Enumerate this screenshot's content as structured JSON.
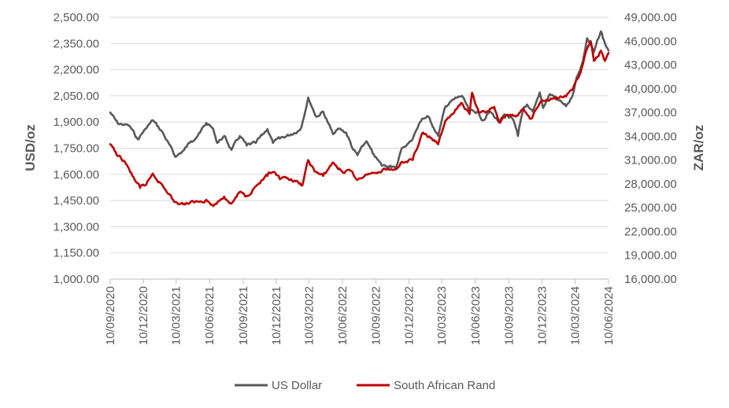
{
  "chart_data": {
    "type": "line",
    "title": "",
    "ylabel_left": "USD/oz",
    "ylabel_right": "ZAR/oz",
    "left_axis": {
      "min": 1000,
      "max": 2500,
      "ticks": [
        "1,000.00",
        "1,150.00",
        "1,300.00",
        "1,450.00",
        "1,600.00",
        "1,750.00",
        "1,900.00",
        "2,050.00",
        "2,200.00",
        "2,350.00",
        "2,500.00"
      ]
    },
    "right_axis": {
      "min": 16000,
      "max": 49000,
      "ticks": [
        "16,000.00",
        "19,000.00",
        "22,000.00",
        "25,000.00",
        "28,000.00",
        "31,000.00",
        "34,000.00",
        "37,000.00",
        "40,000.00",
        "43,000.00",
        "46,000.00",
        "49,000.00"
      ]
    },
    "x_tick_labels": [
      "10/09/2020",
      "10/12/2020",
      "10/03/2021",
      "10/06/2021",
      "10/09/2021",
      "10/12/2021",
      "10/03/2022",
      "10/06/2022",
      "10/09/2022",
      "10/12/2022",
      "10/03/2023",
      "10/06/2023",
      "10/09/2023",
      "10/12/2023",
      "10/03/2024",
      "10/06/2024"
    ],
    "grid": "horizontal",
    "legend_position": "bottom",
    "series": [
      {
        "name": "US Dollar",
        "axis": "left",
        "color": "#595959",
        "x": [
          "2020-09-10",
          "2020-10-01",
          "2020-11-01",
          "2020-11-25",
          "2020-12-15",
          "2021-01-05",
          "2021-02-01",
          "2021-03-08",
          "2021-04-01",
          "2021-04-20",
          "2021-05-15",
          "2021-06-01",
          "2021-06-20",
          "2021-07-01",
          "2021-07-20",
          "2021-08-09",
          "2021-09-01",
          "2021-09-20",
          "2021-10-15",
          "2021-11-16",
          "2021-12-01",
          "2021-12-20",
          "2022-01-20",
          "2022-02-15",
          "2022-03-08",
          "2022-03-30",
          "2022-04-18",
          "2022-05-15",
          "2022-06-01",
          "2022-06-20",
          "2022-07-10",
          "2022-07-21",
          "2022-08-15",
          "2022-09-01",
          "2022-09-26",
          "2022-10-20",
          "2022-11-03",
          "2022-11-20",
          "2022-12-15",
          "2023-01-15",
          "2023-02-01",
          "2023-02-28",
          "2023-03-20",
          "2023-04-13",
          "2023-05-04",
          "2023-05-25",
          "2023-06-15",
          "2023-07-01",
          "2023-07-20",
          "2023-08-15",
          "2023-09-01",
          "2023-09-20",
          "2023-10-05",
          "2023-10-20",
          "2023-10-30",
          "2023-11-15",
          "2023-12-04",
          "2023-12-13",
          "2024-01-01",
          "2024-01-20",
          "2024-02-14",
          "2024-03-01",
          "2024-03-15",
          "2024-04-01",
          "2024-04-12",
          "2024-04-25",
          "2024-05-01",
          "2024-05-20",
          "2024-05-31",
          "2024-06-10"
        ],
        "y": [
          1955,
          1890,
          1880,
          1800,
          1860,
          1910,
          1840,
          1700,
          1740,
          1790,
          1840,
          1895,
          1860,
          1780,
          1820,
          1740,
          1820,
          1765,
          1780,
          1860,
          1780,
          1805,
          1830,
          1860,
          2040,
          1930,
          1960,
          1830,
          1860,
          1840,
          1740,
          1710,
          1790,
          1720,
          1650,
          1650,
          1630,
          1750,
          1790,
          1920,
          1930,
          1820,
          1990,
          2030,
          2050,
          1960,
          1960,
          1910,
          1960,
          1900,
          1940,
          1920,
          1820,
          1980,
          2000,
          1960,
          2070,
          1980,
          2060,
          2030,
          1990,
          2040,
          2160,
          2250,
          2380,
          2330,
          2300,
          2420,
          2350,
          2310
        ]
      },
      {
        "name": "South African Rand",
        "axis": "right",
        "color": "#c00000",
        "x": [
          "2020-09-10",
          "2020-10-01",
          "2020-10-20",
          "2020-11-10",
          "2020-12-01",
          "2020-12-15",
          "2021-01-05",
          "2021-02-01",
          "2021-02-15",
          "2021-03-08",
          "2021-04-01",
          "2021-05-01",
          "2021-06-01",
          "2021-06-20",
          "2021-07-20",
          "2021-08-09",
          "2021-09-01",
          "2021-09-20",
          "2021-10-15",
          "2021-11-16",
          "2021-12-01",
          "2021-12-20",
          "2022-01-20",
          "2022-02-20",
          "2022-03-08",
          "2022-03-25",
          "2022-04-18",
          "2022-05-15",
          "2022-06-10",
          "2022-07-01",
          "2022-07-20",
          "2022-08-15",
          "2022-09-10",
          "2022-10-01",
          "2022-11-01",
          "2022-11-20",
          "2022-12-20",
          "2023-01-15",
          "2023-02-01",
          "2023-02-28",
          "2023-03-20",
          "2023-04-13",
          "2023-05-04",
          "2023-05-25",
          "2023-06-01",
          "2023-06-20",
          "2023-07-10",
          "2023-08-01",
          "2023-08-15",
          "2023-09-05",
          "2023-10-05",
          "2023-10-20",
          "2023-11-10",
          "2023-12-04",
          "2023-12-13",
          "2024-01-15",
          "2024-02-14",
          "2024-03-01",
          "2024-03-25",
          "2024-04-12",
          "2024-04-22",
          "2024-05-01",
          "2024-05-20",
          "2024-05-31",
          "2024-06-10"
        ],
        "y": [
          33000,
          31500,
          30800,
          29000,
          27500,
          27800,
          29300,
          27800,
          26800,
          25700,
          25500,
          25700,
          26000,
          25200,
          26400,
          25500,
          27000,
          26500,
          27700,
          29000,
          29500,
          28600,
          28600,
          27800,
          31000,
          29600,
          29000,
          30700,
          29500,
          29700,
          28500,
          29200,
          29400,
          29900,
          29800,
          30800,
          31000,
          34400,
          33900,
          33000,
          36000,
          37000,
          38200,
          36800,
          39500,
          37000,
          37000,
          37700,
          35700,
          36700,
          36600,
          37500,
          36200,
          38200,
          38500,
          38900,
          39000,
          39800,
          42000,
          45000,
          46000,
          43500,
          44800,
          43500,
          44500
        ]
      }
    ]
  }
}
